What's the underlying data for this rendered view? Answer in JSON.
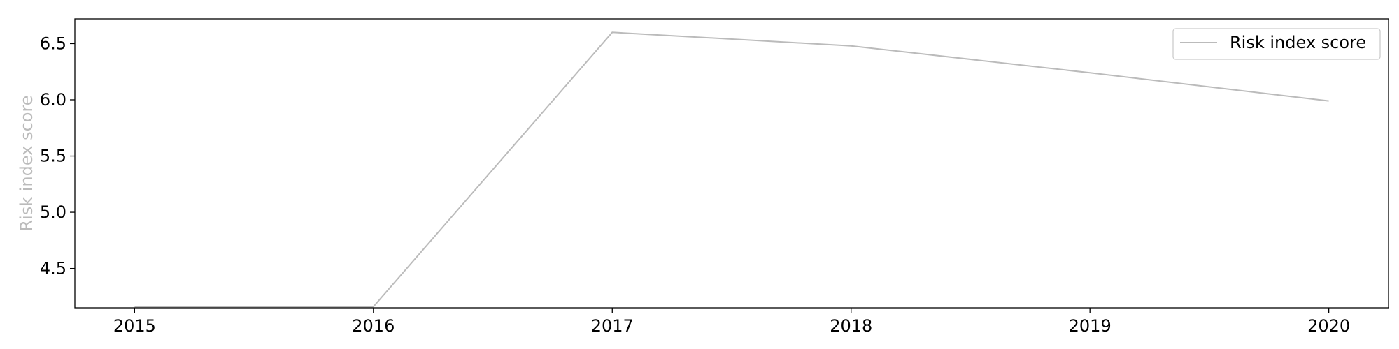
{
  "chart_data": {
    "type": "line",
    "title": "",
    "xlabel": "",
    "ylabel": "Risk index score",
    "x": [
      "2015",
      "2016",
      "2017",
      "2018",
      "2019",
      "2020"
    ],
    "series": [
      {
        "name": "Risk index score",
        "values": [
          4.16,
          4.16,
          6.6,
          6.48,
          6.24,
          5.99
        ],
        "color": "#bbbbbb"
      }
    ],
    "xlim": [
      2014.75,
      2020.25
    ],
    "ylim": [
      4.15,
      6.72
    ],
    "yticks": [
      "4.5",
      "5.0",
      "5.5",
      "6.0",
      "6.5"
    ],
    "grid": false,
    "legend_position": "top-right",
    "ylabel_color": "#bbbbbb"
  }
}
